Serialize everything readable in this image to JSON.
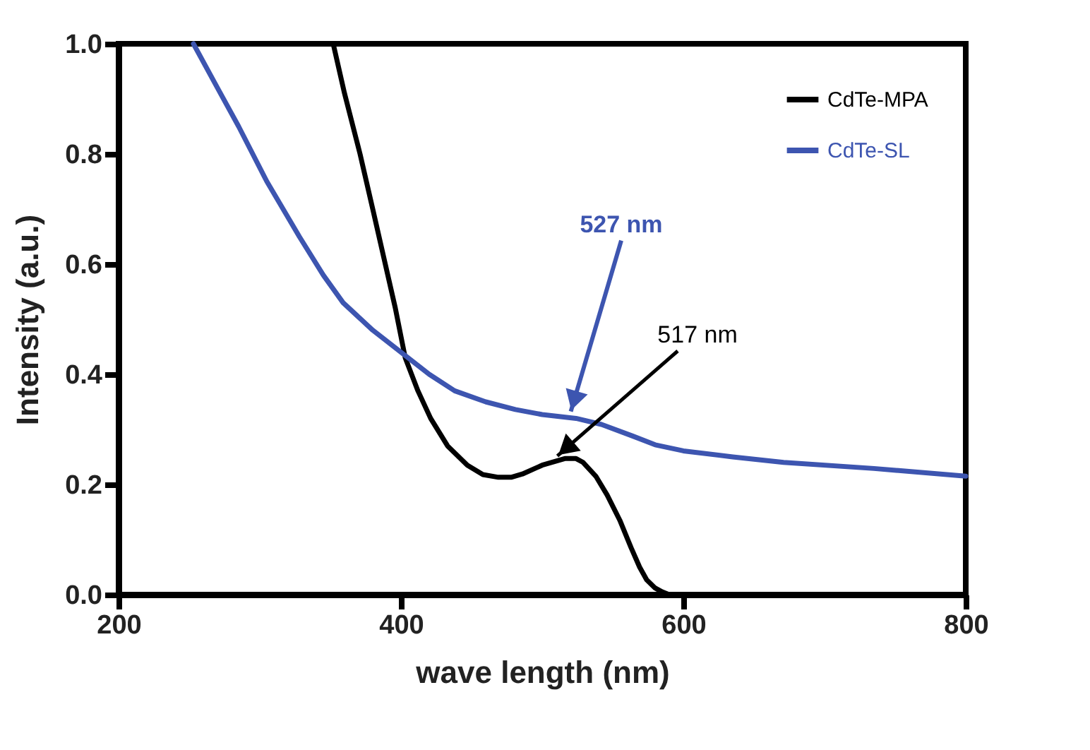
{
  "chart_data": {
    "type": "line",
    "xlabel": "wave length (nm)",
    "ylabel": "Intensity (a.u.)",
    "xlim": [
      200,
      800
    ],
    "ylim": [
      0,
      1
    ],
    "xticks": [
      200,
      400,
      600,
      800
    ],
    "yticks": [
      {
        "value": 0,
        "label": "0.0"
      },
      {
        "value": 0.2,
        "label": "0.2"
      },
      {
        "value": 0.4,
        "label": "0.4"
      },
      {
        "value": 0.6,
        "label": "0.6"
      },
      {
        "value": 0.8,
        "label": "0.8"
      },
      {
        "value": 1,
        "label": "1.0"
      }
    ],
    "grid": false,
    "legend": "top right",
    "marker": "none",
    "line_style": "solid",
    "series": [
      {
        "name": "CdTe-MPA",
        "color": "#000000",
        "x": [
          352,
          360,
          371,
          380,
          388,
          396,
          403,
          412,
          421,
          433,
          447,
          458,
          469,
          478,
          486,
          500,
          516,
          524,
          529,
          538,
          546,
          555,
          563,
          569,
          574,
          580,
          585,
          590
        ],
        "values": [
          1.0,
          0.91,
          0.8,
          0.7,
          0.61,
          0.52,
          0.43,
          0.37,
          0.32,
          0.27,
          0.235,
          0.218,
          0.213,
          0.213,
          0.219,
          0.235,
          0.247,
          0.247,
          0.24,
          0.215,
          0.181,
          0.135,
          0.085,
          0.05,
          0.027,
          0.012,
          0.005,
          0.0
        ]
      },
      {
        "name": "CdTe-SL",
        "color": "#3d55b0",
        "x": [
          253,
          270,
          285,
          305,
          328,
          345,
          359,
          380,
          400,
          420,
          438,
          460,
          481,
          500,
          524,
          542,
          564,
          580,
          600,
          635,
          671,
          735,
          800
        ],
        "values": [
          1.0,
          0.92,
          0.85,
          0.75,
          0.65,
          0.58,
          0.53,
          0.48,
          0.44,
          0.4,
          0.37,
          0.35,
          0.336,
          0.327,
          0.32,
          0.309,
          0.288,
          0.272,
          0.261,
          0.25,
          0.24,
          0.229,
          0.215
        ]
      }
    ],
    "annotations": [
      {
        "text": "517 nm",
        "x": 510,
        "y": 0.25
      },
      {
        "text": "527 nm",
        "x": 520,
        "y": 0.33
      }
    ]
  }
}
